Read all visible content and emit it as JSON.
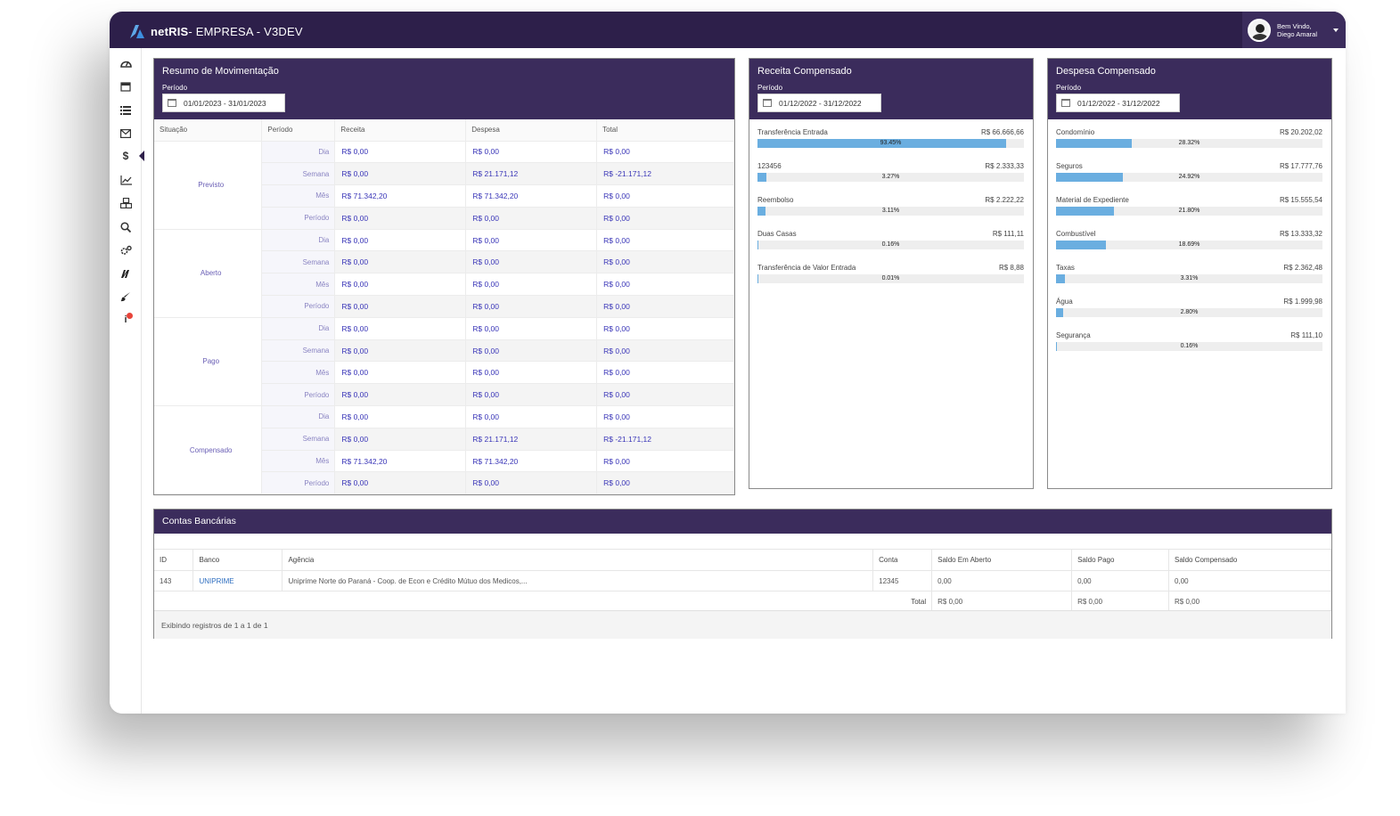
{
  "app": {
    "title_bold": "netRIS",
    "title_rest": " - EMPRESA - V3DEV",
    "user": {
      "greeting": "Bem Vindo,",
      "name": "Diego Amaral"
    }
  },
  "sidebar": {
    "icons": [
      "dashboard-icon",
      "calendar-icon",
      "list-icon",
      "envelope-icon",
      "dollar-icon",
      "chart-line-icon",
      "cubes-icon",
      "search-icon",
      "cogs-icon",
      "logo-n-icon",
      "brush-icon",
      "info-icon"
    ],
    "active": "dollar-icon"
  },
  "movimentacao": {
    "title": "Resumo de Movimentação",
    "periodo_label": "Período",
    "date_range": "01/01/2023 - 31/01/2023",
    "headers": [
      "Situação",
      "Período",
      "Receita",
      "Despesa",
      "Total"
    ],
    "groups": [
      {
        "situacao": "Previsto",
        "rows": [
          {
            "periodo": "Dia",
            "receita": "R$ 0,00",
            "despesa": "R$ 0,00",
            "total": "R$ 0,00"
          },
          {
            "periodo": "Semana",
            "receita": "R$ 0,00",
            "despesa": "R$ 21.171,12",
            "total": "R$ -21.171,12"
          },
          {
            "periodo": "Mês",
            "receita": "R$ 71.342,20",
            "despesa": "R$ 71.342,20",
            "total": "R$ 0,00"
          },
          {
            "periodo": "Período",
            "receita": "R$ 0,00",
            "despesa": "R$ 0,00",
            "total": "R$ 0,00"
          }
        ]
      },
      {
        "situacao": "Aberto",
        "rows": [
          {
            "periodo": "Dia",
            "receita": "R$ 0,00",
            "despesa": "R$ 0,00",
            "total": "R$ 0,00"
          },
          {
            "periodo": "Semana",
            "receita": "R$ 0,00",
            "despesa": "R$ 0,00",
            "total": "R$ 0,00"
          },
          {
            "periodo": "Mês",
            "receita": "R$ 0,00",
            "despesa": "R$ 0,00",
            "total": "R$ 0,00"
          },
          {
            "periodo": "Período",
            "receita": "R$ 0,00",
            "despesa": "R$ 0,00",
            "total": "R$ 0,00"
          }
        ]
      },
      {
        "situacao": "Pago",
        "rows": [
          {
            "periodo": "Dia",
            "receita": "R$ 0,00",
            "despesa": "R$ 0,00",
            "total": "R$ 0,00"
          },
          {
            "periodo": "Semana",
            "receita": "R$ 0,00",
            "despesa": "R$ 0,00",
            "total": "R$ 0,00"
          },
          {
            "periodo": "Mês",
            "receita": "R$ 0,00",
            "despesa": "R$ 0,00",
            "total": "R$ 0,00"
          },
          {
            "periodo": "Período",
            "receita": "R$ 0,00",
            "despesa": "R$ 0,00",
            "total": "R$ 0,00"
          }
        ]
      },
      {
        "situacao": "Compensado",
        "rows": [
          {
            "periodo": "Dia",
            "receita": "R$ 0,00",
            "despesa": "R$ 0,00",
            "total": "R$ 0,00"
          },
          {
            "periodo": "Semana",
            "receita": "R$ 0,00",
            "despesa": "R$ 21.171,12",
            "total": "R$ -21.171,12"
          },
          {
            "periodo": "Mês",
            "receita": "R$ 71.342,20",
            "despesa": "R$ 71.342,20",
            "total": "R$ 0,00"
          },
          {
            "periodo": "Período",
            "receita": "R$ 0,00",
            "despesa": "R$ 0,00",
            "total": "R$ 0,00"
          }
        ]
      }
    ]
  },
  "receita": {
    "title": "Receita Compensado",
    "periodo_label": "Período",
    "date_range": "01/12/2022 - 31/12/2022",
    "items": [
      {
        "label": "Transferência Entrada",
        "amount": "R$ 66.666,66",
        "pct_text": "93.45%",
        "pct": 93.45
      },
      {
        "label": "123456",
        "amount": "R$ 2.333,33",
        "pct_text": "3.27%",
        "pct": 3.27
      },
      {
        "label": "Reembolso",
        "amount": "R$ 2.222,22",
        "pct_text": "3.11%",
        "pct": 3.11
      },
      {
        "label": "Duas Casas",
        "amount": "R$ 111,11",
        "pct_text": "0.16%",
        "pct": 0.16
      },
      {
        "label": "Transferência de Valor Entrada",
        "amount": "R$ 8,88",
        "pct_text": "0.01%",
        "pct": 0.01
      }
    ]
  },
  "despesa": {
    "title": "Despesa Compensado",
    "periodo_label": "Período",
    "date_range": "01/12/2022 - 31/12/2022",
    "items": [
      {
        "label": "Condomínio",
        "amount": "R$ 20.202,02",
        "pct_text": "28.32%",
        "pct": 28.32
      },
      {
        "label": "Seguros",
        "amount": "R$ 17.777,76",
        "pct_text": "24.92%",
        "pct": 24.92
      },
      {
        "label": "Material de Expediente",
        "amount": "R$ 15.555,54",
        "pct_text": "21.80%",
        "pct": 21.8
      },
      {
        "label": "Combustível",
        "amount": "R$ 13.333,32",
        "pct_text": "18.69%",
        "pct": 18.69
      },
      {
        "label": "Taxas",
        "amount": "R$ 2.362,48",
        "pct_text": "3.31%",
        "pct": 3.31
      },
      {
        "label": "Água",
        "amount": "R$ 1.999,98",
        "pct_text": "2.80%",
        "pct": 2.8
      },
      {
        "label": "Segurança",
        "amount": "R$ 111,10",
        "pct_text": "0.16%",
        "pct": 0.16
      }
    ]
  },
  "contas": {
    "title": "Contas Bancárias",
    "headers": [
      "ID",
      "Banco",
      "Agência",
      "Conta",
      "Saldo Em Aberto",
      "Saldo Pago",
      "Saldo Compensado"
    ],
    "rows": [
      {
        "id": "143",
        "banco": "UNIPRIME",
        "agencia": "Uniprime Norte do Paraná - Coop. de Econ e Crédito Mútuo dos Medicos,...",
        "conta": "12345",
        "saldo_aberto": "0,00",
        "saldo_pago": "0,00",
        "saldo_compensado": "0,00"
      }
    ],
    "total_label": "Total",
    "totals": {
      "saldo_aberto": "R$ 0,00",
      "saldo_pago": "R$ 0,00",
      "saldo_compensado": "R$ 0,00"
    },
    "footer": "Exibindo registros de 1 a 1 de 1"
  },
  "colors": {
    "header": "#2d1f4a",
    "panel_head": "#3b2c5c",
    "bar": "#6aaee0",
    "value_text": "#3a36b8"
  }
}
